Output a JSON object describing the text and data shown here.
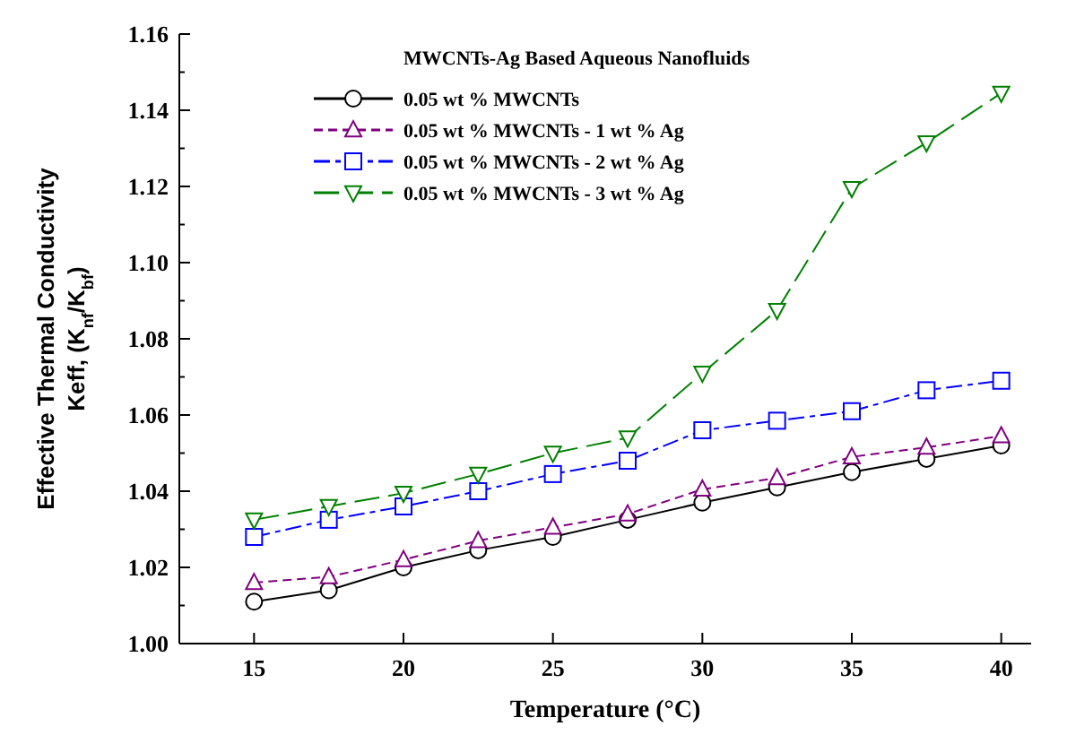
{
  "chart_data": {
    "type": "line",
    "xlabel": "Temperature (°C)",
    "ylabel": "Effective Thermal Conductivity\nKeff, (K$_{nf}$/K$_{bf}$)",
    "legend_title": "MWCNTs-Ag Based Aqueous Nanofluids",
    "legend": "top",
    "grid": false,
    "x": [
      15,
      17.5,
      20,
      22.5,
      25,
      27.5,
      30,
      32.5,
      35,
      37.5,
      40
    ],
    "xlim": [
      12.5,
      41
    ],
    "xticks": [
      15,
      20,
      25,
      30,
      35,
      40
    ],
    "ylim": [
      1.0,
      1.16
    ],
    "yticks": [
      {
        "value": 1.0,
        "label": "1.00"
      },
      1.02,
      1.04,
      1.06,
      1.08,
      {
        "value": 1.1,
        "label": "1.10"
      },
      1.12,
      1.14,
      1.16
    ],
    "series": [
      {
        "name": "0.05 wt % MWCNTs",
        "color": "#000000",
        "marker": "circle",
        "line_style": "solid",
        "values": [
          1.011,
          1.014,
          1.02,
          1.0245,
          1.028,
          1.0325,
          1.037,
          1.041,
          1.045,
          1.0485,
          1.052
        ]
      },
      {
        "name": "0.05 wt % MWCNTs - 1 wt % Ag",
        "color": "#800080",
        "marker": "triangle",
        "line_style": "dashed",
        "values": [
          1.016,
          1.0175,
          1.022,
          1.027,
          1.0305,
          1.034,
          1.0405,
          1.0435,
          1.049,
          1.0515,
          1.0545
        ]
      },
      {
        "name": "0.05 wt % MWCNTs - 2 wt % Ag",
        "color": "#0000ff",
        "marker": "square",
        "line_style": "dashed",
        "values": [
          1.028,
          1.0325,
          1.036,
          1.04,
          1.0445,
          1.048,
          1.056,
          1.0585,
          1.061,
          1.0665,
          1.069
        ]
      },
      {
        "name": "0.05 wt % MWCNTs - 3 wt % Ag",
        "color": "#008000",
        "marker": "triangle-down",
        "line_style": "dashed",
        "values": [
          1.0325,
          1.036,
          1.0395,
          1.0445,
          1.05,
          1.054,
          1.071,
          1.0875,
          1.1195,
          1.1315,
          1.1445
        ]
      }
    ]
  }
}
